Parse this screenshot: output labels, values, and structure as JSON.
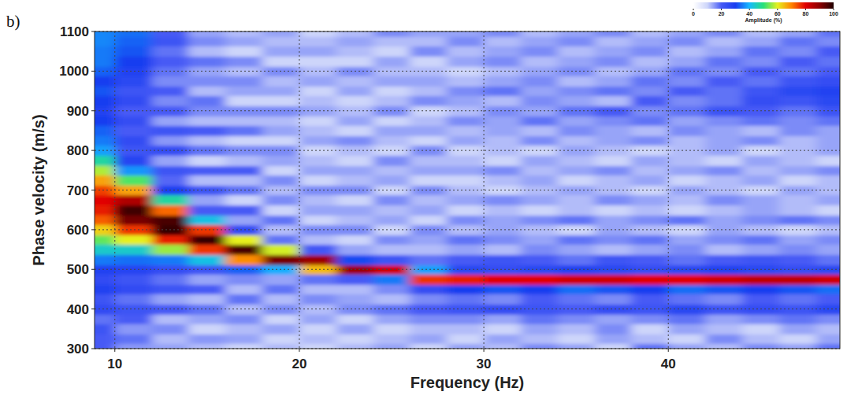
{
  "chart_data": {
    "type": "heatmap",
    "panel_label": "b)",
    "x_label": "Frequency (Hz)",
    "y_label": "Phase velocity (m/s)",
    "x": [
      9,
      11,
      13,
      15,
      17,
      19,
      21,
      23,
      25,
      27,
      29,
      31,
      33,
      35,
      37,
      39,
      41,
      43,
      45,
      47,
      49
    ],
    "y": [
      300,
      325,
      350,
      375,
      400,
      425,
      450,
      475,
      500,
      525,
      550,
      575,
      600,
      625,
      650,
      675,
      700,
      725,
      750,
      775,
      800,
      825,
      850,
      875,
      900,
      925,
      950,
      975,
      1000,
      1025,
      1050,
      1075,
      1100
    ],
    "values": [
      [
        20,
        15,
        14,
        12,
        10,
        12,
        10,
        12,
        14,
        10,
        14,
        12,
        16,
        14,
        10,
        18,
        14,
        12,
        16,
        14,
        18
      ],
      [
        20,
        18,
        12,
        15,
        14,
        10,
        12,
        10,
        12,
        14,
        10,
        14,
        12,
        10,
        14,
        12,
        10,
        16,
        12,
        10,
        14
      ],
      [
        22,
        15,
        16,
        10,
        12,
        14,
        10,
        14,
        10,
        12,
        12,
        10,
        14,
        12,
        16,
        10,
        14,
        12,
        10,
        14,
        12
      ],
      [
        18,
        20,
        12,
        14,
        16,
        10,
        14,
        10,
        14,
        16,
        16,
        14,
        18,
        16,
        14,
        16,
        18,
        14,
        16,
        18,
        16
      ],
      [
        25,
        22,
        20,
        18,
        12,
        16,
        12,
        16,
        18,
        20,
        22,
        24,
        22,
        20,
        24,
        22,
        26,
        22,
        24,
        22,
        26
      ],
      [
        22,
        18,
        14,
        12,
        18,
        12,
        16,
        14,
        12,
        16,
        18,
        16,
        20,
        18,
        16,
        20,
        18,
        16,
        20,
        18,
        20
      ],
      [
        28,
        25,
        22,
        20,
        12,
        18,
        12,
        12,
        16,
        24,
        30,
        32,
        30,
        34,
        32,
        30,
        34,
        32,
        30,
        32,
        34
      ],
      [
        25,
        22,
        18,
        14,
        16,
        14,
        18,
        20,
        35,
        76,
        78,
        80,
        80,
        82,
        82,
        80,
        80,
        82,
        84,
        84,
        82
      ],
      [
        28,
        27,
        24,
        22,
        33,
        39,
        65,
        88,
        82,
        38,
        26,
        24,
        26,
        28,
        26,
        24,
        26,
        28,
        26,
        24,
        26
      ],
      [
        35,
        34,
        35,
        42,
        69,
        92,
        88,
        31,
        22,
        18,
        20,
        22,
        20,
        18,
        22,
        20,
        18,
        20,
        22,
        20,
        18
      ],
      [
        44,
        44,
        56,
        76,
        96,
        59,
        21,
        14,
        12,
        12,
        14,
        12,
        16,
        14,
        12,
        14,
        16,
        12,
        14,
        16,
        14
      ],
      [
        53,
        60,
        78,
        98,
        60,
        18,
        12,
        10,
        16,
        14,
        18,
        16,
        14,
        18,
        16,
        18,
        14,
        16,
        18,
        14,
        16
      ],
      [
        63,
        76,
        98,
        76,
        25,
        12,
        16,
        16,
        10,
        16,
        12,
        14,
        12,
        10,
        14,
        12,
        10,
        14,
        12,
        10,
        12
      ],
      [
        73,
        92,
        96,
        42,
        14,
        18,
        10,
        12,
        14,
        10,
        16,
        14,
        16,
        18,
        14,
        16,
        18,
        14,
        16,
        18,
        16
      ],
      [
        78,
        97,
        72,
        20,
        20,
        10,
        14,
        14,
        12,
        14,
        10,
        12,
        10,
        12,
        10,
        12,
        10,
        12,
        14,
        12,
        10
      ],
      [
        80,
        86,
        47,
        14,
        10,
        16,
        12,
        10,
        16,
        12,
        14,
        16,
        14,
        12,
        16,
        14,
        12,
        16,
        14,
        12,
        14
      ],
      [
        75,
        67,
        29,
        22,
        18,
        12,
        16,
        16,
        10,
        16,
        12,
        10,
        12,
        14,
        12,
        10,
        14,
        12,
        10,
        14,
        12
      ],
      [
        67,
        52,
        19,
        12,
        12,
        16,
        10,
        12,
        14,
        10,
        10,
        12,
        14,
        10,
        12,
        14,
        10,
        12,
        14,
        10,
        12
      ],
      [
        57,
        37,
        22,
        20,
        20,
        10,
        14,
        14,
        12,
        14,
        14,
        16,
        12,
        14,
        16,
        12,
        14,
        16,
        12,
        14,
        16
      ],
      [
        47,
        27,
        14,
        10,
        12,
        14,
        12,
        10,
        16,
        12,
        12,
        10,
        14,
        12,
        10,
        14,
        12,
        10,
        14,
        12,
        10
      ],
      [
        38,
        22,
        24,
        18,
        16,
        16,
        10,
        12,
        10,
        16,
        10,
        12,
        10,
        14,
        12,
        10,
        12,
        14,
        10,
        12,
        14
      ],
      [
        35,
        25,
        15,
        12,
        10,
        10,
        14,
        16,
        12,
        10,
        14,
        12,
        16,
        12,
        14,
        16,
        12,
        14,
        16,
        12,
        14
      ],
      [
        33,
        20,
        22,
        20,
        18,
        14,
        12,
        10,
        14,
        14,
        12,
        14,
        12,
        16,
        14,
        12,
        16,
        14,
        12,
        16,
        14
      ],
      [
        30,
        24,
        14,
        12,
        12,
        12,
        10,
        14,
        10,
        12,
        16,
        14,
        18,
        14,
        16,
        18,
        14,
        16,
        18,
        16,
        18
      ],
      [
        28,
        20,
        20,
        16,
        16,
        16,
        14,
        12,
        16,
        10,
        12,
        16,
        14,
        18,
        20,
        16,
        18,
        22,
        20,
        18,
        22
      ],
      [
        30,
        25,
        16,
        18,
        10,
        10,
        12,
        10,
        12,
        16,
        14,
        12,
        16,
        14,
        12,
        20,
        16,
        18,
        24,
        22,
        26
      ],
      [
        32,
        22,
        20,
        12,
        14,
        14,
        10,
        14,
        10,
        12,
        16,
        18,
        14,
        16,
        18,
        16,
        20,
        18,
        22,
        26,
        28
      ],
      [
        30,
        26,
        16,
        16,
        16,
        12,
        14,
        12,
        14,
        14,
        12,
        14,
        16,
        12,
        14,
        18,
        16,
        20,
        18,
        22,
        24
      ],
      [
        33,
        28,
        18,
        14,
        12,
        16,
        12,
        16,
        12,
        12,
        10,
        12,
        14,
        16,
        12,
        14,
        18,
        16,
        20,
        18,
        20
      ],
      [
        35,
        30,
        20,
        18,
        16,
        10,
        10,
        10,
        14,
        10,
        14,
        16,
        12,
        14,
        16,
        12,
        14,
        18,
        16,
        20,
        18
      ],
      [
        35,
        32,
        18,
        12,
        10,
        14,
        14,
        12,
        10,
        16,
        12,
        14,
        16,
        12,
        14,
        16,
        12,
        14,
        18,
        16,
        20
      ],
      [
        36,
        33,
        22,
        16,
        14,
        12,
        12,
        14,
        12,
        12,
        16,
        12,
        14,
        16,
        12,
        14,
        16,
        12,
        14,
        18,
        16
      ],
      [
        36,
        34,
        20,
        14,
        12,
        14,
        10,
        12,
        16,
        14,
        14,
        16,
        12,
        14,
        16,
        12,
        14,
        16,
        12,
        14,
        18
      ]
    ],
    "xlim": [
      8.9,
      49.3
    ],
    "ylim": [
      300,
      1100
    ],
    "xticks": [
      10,
      20,
      30,
      40
    ],
    "yticks": [
      300,
      400,
      500,
      600,
      700,
      800,
      900,
      1000,
      1100
    ],
    "grid": true,
    "colorbar_label": "Amplitude (%)",
    "colorbar_range": [
      0,
      100
    ],
    "colorbar_ticks": [
      0,
      20,
      40,
      60,
      80,
      100
    ]
  }
}
